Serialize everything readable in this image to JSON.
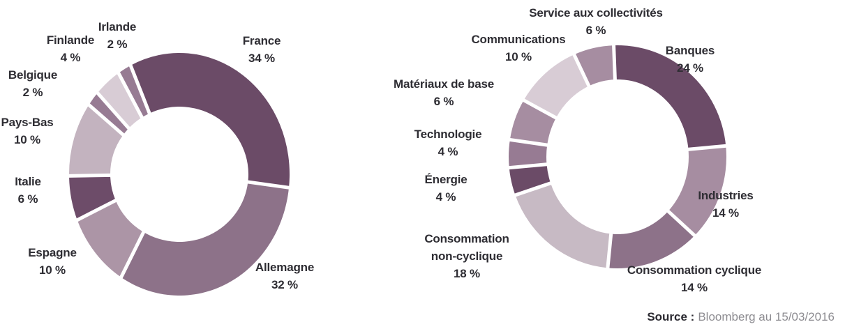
{
  "source": {
    "prefix": "Source :",
    "text": "Bloomberg au 15/03/2016"
  },
  "chart_data": [
    {
      "type": "pie",
      "subtype": "donut",
      "unit": "%",
      "legend_position": "around-labels",
      "slices": [
        {
          "label": "France",
          "value": 34,
          "display": "34 %",
          "color": "#6B4B67",
          "label_lines": [
            "France",
            "34 %"
          ]
        },
        {
          "label": "Allemagne",
          "value": 32,
          "display": "32 %",
          "color": "#8D7289",
          "label_lines": [
            "Allemagne",
            "32 %"
          ]
        },
        {
          "label": "Espagne",
          "value": 10,
          "display": "10 %",
          "color": "#AC95A6",
          "label_lines": [
            "Espagne",
            "10 %"
          ]
        },
        {
          "label": "Italie",
          "value": 6,
          "display": "6 %",
          "color": "#6D4C69",
          "label_lines": [
            "Italie",
            "6 %"
          ]
        },
        {
          "label": "Pays-Bas",
          "value": 10,
          "display": "10 %",
          "color": "#C3B3BF",
          "label_lines": [
            "Pays-Bas",
            "10 %"
          ]
        },
        {
          "label": "Belgique",
          "value": 2,
          "display": "2 %",
          "color": "#977B93",
          "label_lines": [
            "Belgique",
            "2 %"
          ]
        },
        {
          "label": "Finlande",
          "value": 4,
          "display": "4 %",
          "color": "#D8CCD5",
          "label_lines": [
            "Finlande",
            "4 %"
          ]
        },
        {
          "label": "Irlande",
          "value": 2,
          "display": "2 %",
          "color": "#977B93",
          "label_lines": [
            "Irlande",
            "2 %"
          ]
        }
      ]
    },
    {
      "type": "pie",
      "subtype": "donut",
      "unit": "%",
      "legend_position": "around-labels",
      "slices": [
        {
          "label": "Banques",
          "value": 24,
          "display": "24 %",
          "color": "#6B4B67",
          "label_lines": [
            "Banques",
            "24 %"
          ]
        },
        {
          "label": "Industries",
          "value": 14,
          "display": "14 %",
          "color": "#A68DA1",
          "label_lines": [
            "Industries",
            "14 %"
          ]
        },
        {
          "label": "Consommation cyclique",
          "value": 14,
          "display": "14 %",
          "color": "#8D7289",
          "label_lines": [
            "Consommation cyclique",
            "14 %"
          ]
        },
        {
          "label": "Consommation non-cyclique",
          "value": 18,
          "display": "18 %",
          "color": "#C7BAC4",
          "label_lines": [
            "Consommation",
            "non-cyclique",
            "18 %"
          ]
        },
        {
          "label": "Énergie",
          "value": 4,
          "display": "4 %",
          "color": "#6B4B67",
          "label_lines": [
            "Énergie",
            "4 %"
          ]
        },
        {
          "label": "Technologie",
          "value": 4,
          "display": "4 %",
          "color": "#977B93",
          "label_lines": [
            "Technologie",
            "4 %"
          ]
        },
        {
          "label": "Matériaux de base",
          "value": 6,
          "display": "6 %",
          "color": "#A68DA1",
          "label_lines": [
            "Matériaux de base",
            "6 %"
          ]
        },
        {
          "label": "Communications",
          "value": 10,
          "display": "10 %",
          "color": "#D8CCD5",
          "label_lines": [
            "Communications",
            "10 %"
          ]
        },
        {
          "label": "Service aux collectivités",
          "value": 6,
          "display": "6 %",
          "color": "#A68DA1",
          "label_lines": [
            "Service aux collectivités",
            "6 %"
          ]
        }
      ]
    }
  ]
}
